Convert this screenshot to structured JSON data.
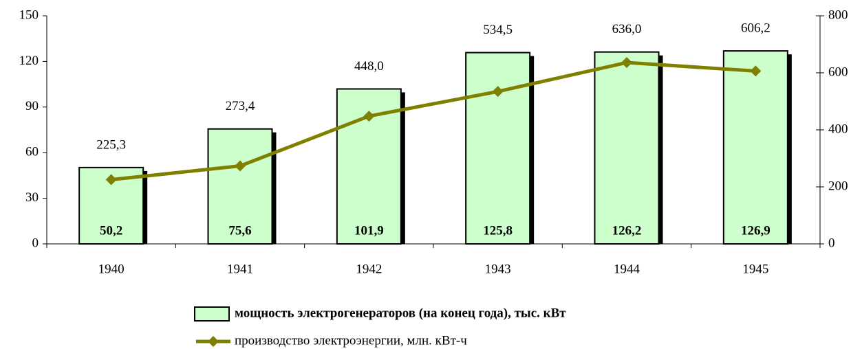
{
  "chart_data": {
    "type": "combo",
    "categories": [
      "1940",
      "1941",
      "1942",
      "1943",
      "1944",
      "1945"
    ],
    "series": [
      {
        "name": "мощность электрогенераторов (на конец года), тыс. кВт",
        "type": "bar",
        "color": "#ccffcc",
        "axis": "y",
        "values": [
          50.2,
          75.6,
          101.9,
          125.8,
          126.2,
          126.9
        ],
        "value_labels": [
          "50,2",
          "75,6",
          "101,9",
          "125,8",
          "126,2",
          "126,9"
        ]
      },
      {
        "name": "производство электроэнергии, млн. кВт-ч",
        "type": "line",
        "color": "#808000",
        "axis": "y2",
        "values": [
          225.3,
          273.4,
          448.0,
          534.5,
          636.0,
          606.2
        ],
        "value_labels": [
          "225,3",
          "273,4",
          "448,0",
          "534,5",
          "636,0",
          "606,2"
        ]
      }
    ],
    "ylim": [
      0,
      150
    ],
    "yticks": [
      0,
      30,
      60,
      90,
      120,
      150
    ],
    "y2lim": [
      0,
      800
    ],
    "y2ticks": [
      0,
      200,
      400,
      600,
      800
    ],
    "grid": false,
    "legend": "bottom"
  }
}
